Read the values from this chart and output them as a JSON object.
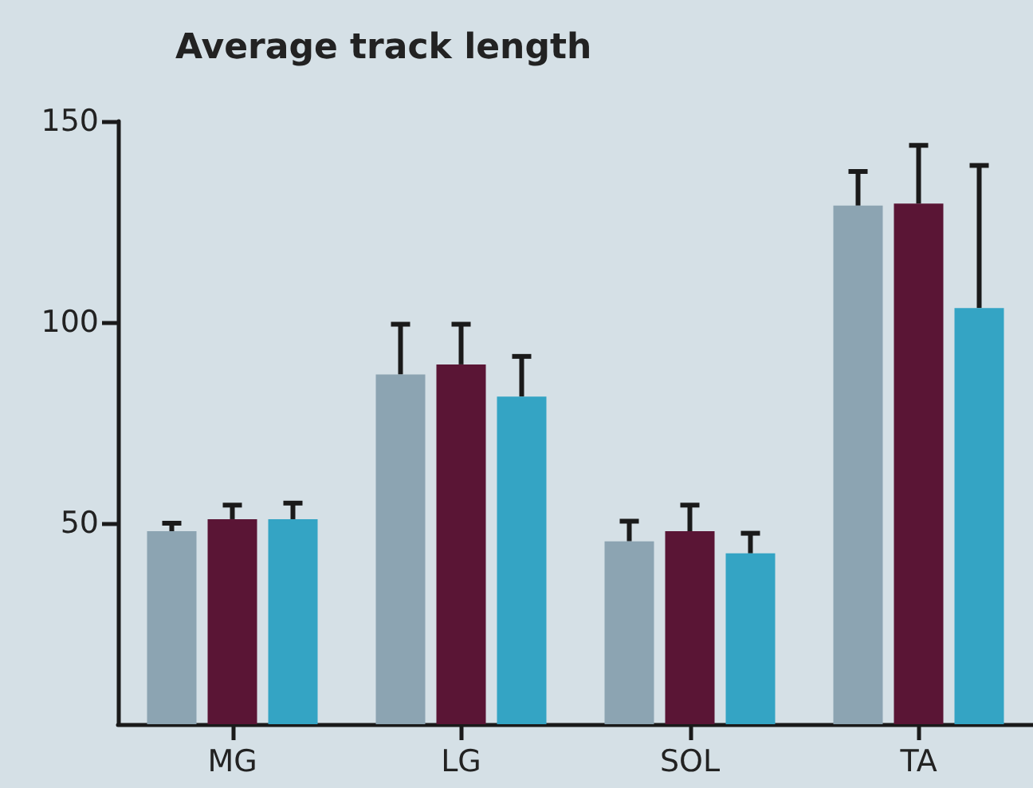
{
  "chart_data": {
    "type": "bar",
    "title": "Average track length",
    "categories": [
      "MG",
      "LG",
      "SOL",
      "TA"
    ],
    "series": [
      {
        "color": "#8ca4b2",
        "values": [
          48,
          87,
          45.5,
          129
        ],
        "errors": [
          [
            48,
            50
          ],
          [
            87,
            99.5
          ],
          [
            45.5,
            50.5
          ],
          [
            129,
            137.5
          ]
        ]
      },
      {
        "color": "#5a1535",
        "values": [
          51,
          89.5,
          48,
          129.5
        ],
        "errors": [
          [
            51,
            54.5
          ],
          [
            89.5,
            99.5
          ],
          [
            48,
            54.5
          ],
          [
            129.5,
            144
          ]
        ]
      },
      {
        "color": "#34a4c4",
        "values": [
          51,
          81.5,
          42.5,
          103.5
        ],
        "errors": [
          [
            51,
            55
          ],
          [
            81.5,
            91.5
          ],
          [
            42.5,
            47.5
          ],
          [
            103.5,
            139
          ]
        ]
      }
    ],
    "ylim": [
      0,
      150
    ],
    "yticks": [
      50,
      100,
      150
    ],
    "grid": false
  }
}
